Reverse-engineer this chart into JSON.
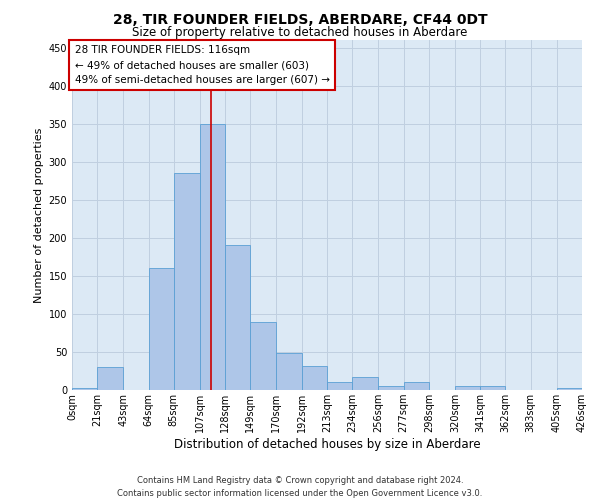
{
  "title": "28, TIR FOUNDER FIELDS, ABERDARE, CF44 0DT",
  "subtitle": "Size of property relative to detached houses in Aberdare",
  "xlabel": "Distribution of detached houses by size in Aberdare",
  "ylabel": "Number of detached properties",
  "footer_line1": "Contains HM Land Registry data © Crown copyright and database right 2024.",
  "footer_line2": "Contains public sector information licensed under the Open Government Licence v3.0.",
  "annotation_line1": "28 TIR FOUNDER FIELDS: 116sqm",
  "annotation_line2": "← 49% of detached houses are smaller (603)",
  "annotation_line3": "49% of semi-detached houses are larger (607) →",
  "property_size": 116,
  "bin_edges": [
    0,
    21,
    43,
    64,
    85,
    107,
    128,
    149,
    170,
    192,
    213,
    234,
    256,
    277,
    298,
    320,
    341,
    362,
    383,
    405,
    426
  ],
  "bin_labels": [
    "0sqm",
    "21sqm",
    "43sqm",
    "64sqm",
    "85sqm",
    "107sqm",
    "128sqm",
    "149sqm",
    "170sqm",
    "192sqm",
    "213sqm",
    "234sqm",
    "256sqm",
    "277sqm",
    "298sqm",
    "320sqm",
    "341sqm",
    "362sqm",
    "383sqm",
    "405sqm",
    "426sqm"
  ],
  "bar_heights": [
    2,
    30,
    0,
    160,
    285,
    350,
    190,
    90,
    48,
    32,
    10,
    17,
    5,
    10,
    0,
    5,
    5,
    0,
    0,
    2
  ],
  "bar_color": "#aec6e8",
  "bar_edge_color": "#5a9fd4",
  "vline_color": "#cc0000",
  "vline_x": 116,
  "ylim": [
    0,
    460
  ],
  "yticks": [
    0,
    50,
    100,
    150,
    200,
    250,
    300,
    350,
    400,
    450
  ],
  "plot_bg_color": "#dce9f5",
  "grid_color": "#c0cfe0",
  "annotation_box_color": "#ffffff",
  "annotation_box_edge": "#cc0000",
  "title_fontsize": 10,
  "subtitle_fontsize": 8.5,
  "axis_label_fontsize": 8,
  "tick_fontsize": 7,
  "annotation_fontsize": 7.5,
  "footer_fontsize": 6
}
